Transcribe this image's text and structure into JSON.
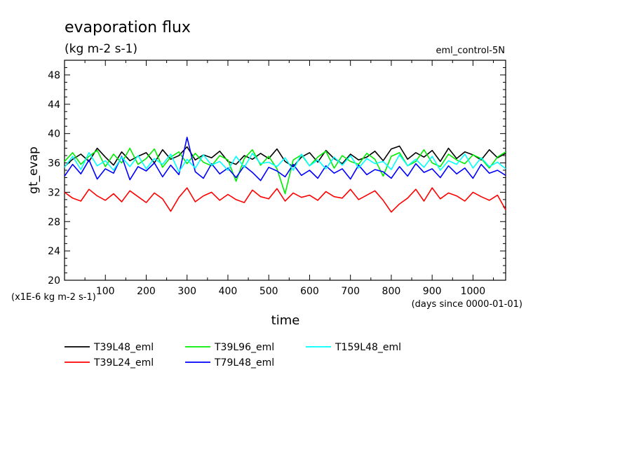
{
  "title": "evaporation flux",
  "units": "(kg m-2 s-1)",
  "experiment": "eml_control-5N",
  "y_multiplier_label": "(x1E-6 kg m-2 s-1)",
  "x_note": "(days since 0000-01-01)",
  "chart_data": {
    "type": "line",
    "xlabel": "time",
    "ylabel": "gt_evap",
    "xlim": [
      0,
      1080
    ],
    "ylim": [
      20,
      50
    ],
    "x_ticks": [
      100,
      200,
      300,
      400,
      500,
      600,
      700,
      800,
      900,
      1000
    ],
    "x_tick_labels": [
      "100",
      "200",
      "300",
      "400",
      "500",
      "600",
      "700",
      "800",
      "900",
      "1000"
    ],
    "y_ticks": [
      20,
      24,
      28,
      32,
      36,
      40,
      44,
      48
    ],
    "y_tick_labels": [
      "20",
      "24",
      "28",
      "32",
      "36",
      "40",
      "44",
      "48"
    ],
    "grid": false,
    "legend_position": "below",
    "series": [
      {
        "name": "T39L48_eml",
        "color": "#000000",
        "x": [
          0,
          20,
          40,
          60,
          80,
          100,
          120,
          140,
          160,
          180,
          200,
          220,
          240,
          260,
          280,
          300,
          320,
          340,
          360,
          380,
          400,
          420,
          440,
          460,
          480,
          500,
          520,
          540,
          560,
          580,
          600,
          620,
          640,
          660,
          680,
          700,
          720,
          740,
          760,
          780,
          800,
          820,
          840,
          860,
          880,
          900,
          920,
          940,
          960,
          980,
          1000,
          1020,
          1040,
          1060,
          1080
        ],
        "values": [
          35.5,
          36.5,
          37.2,
          36.2,
          38.0,
          36.8,
          35.7,
          37.5,
          36.3,
          36.9,
          37.4,
          36.0,
          37.8,
          36.5,
          37.0,
          38.2,
          36.4,
          37.1,
          36.7,
          37.6,
          36.2,
          35.8,
          37.0,
          36.5,
          37.3,
          36.6,
          37.9,
          36.2,
          35.5,
          36.8,
          37.4,
          36.1,
          37.7,
          36.6,
          35.9,
          37.2,
          36.4,
          36.8,
          37.6,
          36.3,
          37.9,
          38.3,
          36.5,
          37.4,
          36.8,
          37.7,
          36.2,
          38.0,
          36.6,
          37.5,
          37.1,
          36.4,
          37.8,
          36.7,
          37.3
        ]
      },
      {
        "name": "T39L24_eml",
        "color": "#ff0000",
        "x": [
          0,
          20,
          40,
          60,
          80,
          100,
          120,
          140,
          160,
          180,
          200,
          220,
          240,
          260,
          280,
          300,
          320,
          340,
          360,
          380,
          400,
          420,
          440,
          460,
          480,
          500,
          520,
          540,
          560,
          580,
          600,
          620,
          640,
          660,
          680,
          700,
          720,
          740,
          760,
          780,
          800,
          820,
          840,
          860,
          880,
          900,
          920,
          940,
          960,
          980,
          1000,
          1020,
          1040,
          1060,
          1080
        ],
        "values": [
          32.0,
          31.2,
          30.8,
          32.4,
          31.5,
          30.9,
          31.8,
          30.7,
          32.2,
          31.4,
          30.6,
          31.9,
          31.1,
          29.4,
          31.3,
          32.6,
          30.7,
          31.5,
          32.0,
          30.9,
          31.7,
          31.0,
          30.6,
          32.3,
          31.4,
          31.1,
          32.5,
          30.8,
          31.9,
          31.3,
          31.6,
          30.9,
          32.1,
          31.4,
          31.2,
          32.4,
          31.0,
          31.6,
          32.2,
          30.9,
          29.3,
          30.4,
          31.2,
          32.4,
          30.8,
          32.6,
          31.1,
          31.9,
          31.5,
          30.8,
          32.0,
          31.4,
          30.9,
          31.6,
          29.6
        ]
      },
      {
        "name": "T39L96_eml",
        "color": "#00ee00",
        "x": [
          0,
          20,
          40,
          60,
          80,
          100,
          120,
          140,
          160,
          180,
          200,
          220,
          240,
          260,
          280,
          300,
          320,
          340,
          360,
          380,
          400,
          420,
          440,
          460,
          480,
          500,
          520,
          540,
          560,
          580,
          600,
          620,
          640,
          660,
          680,
          700,
          720,
          740,
          760,
          780,
          800,
          820,
          840,
          860,
          880,
          900,
          920,
          940,
          960,
          980,
          1000,
          1020,
          1040,
          1060,
          1080
        ],
        "values": [
          36.2,
          37.4,
          35.8,
          36.9,
          37.7,
          35.5,
          37.2,
          36.0,
          38.0,
          35.8,
          36.6,
          37.9,
          35.4,
          36.8,
          37.5,
          35.9,
          37.3,
          36.1,
          35.6,
          37.0,
          36.4,
          33.5,
          36.6,
          37.8,
          35.7,
          36.9,
          35.2,
          31.8,
          36.4,
          37.1,
          35.6,
          36.8,
          37.6,
          35.3,
          37.0,
          36.2,
          35.8,
          37.3,
          36.5,
          34.2,
          36.9,
          37.4,
          35.6,
          36.2,
          37.8,
          36.0,
          35.5,
          37.2,
          36.4,
          35.9,
          37.1,
          36.6,
          35.3,
          36.8,
          37.5
        ]
      },
      {
        "name": "T79L48_eml",
        "color": "#0000ff",
        "x": [
          0,
          20,
          40,
          60,
          80,
          100,
          120,
          140,
          160,
          180,
          200,
          220,
          240,
          260,
          280,
          300,
          320,
          340,
          360,
          380,
          400,
          420,
          440,
          460,
          480,
          500,
          520,
          540,
          560,
          580,
          600,
          620,
          640,
          660,
          680,
          700,
          720,
          740,
          760,
          780,
          800,
          820,
          840,
          860,
          880,
          900,
          920,
          940,
          960,
          980,
          1000,
          1020,
          1040,
          1060,
          1080
        ],
        "values": [
          34.2,
          35.8,
          34.5,
          36.4,
          33.8,
          35.2,
          34.6,
          36.9,
          33.7,
          35.5,
          34.9,
          36.0,
          34.1,
          35.7,
          34.4,
          39.5,
          34.8,
          33.9,
          35.9,
          34.5,
          35.3,
          34.0,
          35.6,
          34.7,
          33.6,
          35.4,
          34.9,
          34.1,
          35.8,
          34.3,
          35.0,
          33.9,
          35.6,
          34.6,
          35.2,
          33.8,
          35.7,
          34.4,
          35.1,
          34.8,
          33.9,
          35.5,
          34.2,
          35.9,
          34.7,
          35.2,
          34.0,
          35.6,
          34.5,
          35.3,
          33.9,
          35.8,
          34.6,
          35.0,
          34.3
        ]
      },
      {
        "name": "T159L48_eml",
        "color": "#00ffff",
        "x": [
          0,
          20,
          40,
          60,
          80,
          100,
          120,
          140,
          160,
          180,
          200,
          220,
          240,
          260,
          280,
          300,
          320,
          340,
          360,
          380,
          400,
          420,
          440,
          460,
          480,
          500,
          520,
          540,
          560,
          580,
          600,
          620,
          640,
          660,
          680,
          700,
          720,
          740,
          760,
          780,
          800,
          820,
          840,
          860,
          880,
          900,
          920,
          940,
          960,
          980,
          1000,
          1020,
          1040,
          1060,
          1080
        ],
        "values": [
          35.4,
          36.9,
          35.1,
          37.4,
          35.6,
          36.3,
          35.0,
          36.8,
          35.5,
          37.0,
          35.2,
          36.6,
          35.8,
          37.2,
          34.8,
          36.5,
          35.3,
          37.1,
          35.7,
          36.2,
          35.0,
          36.9,
          35.4,
          37.3,
          35.9,
          36.1,
          35.5,
          36.7,
          35.0,
          37.2,
          35.6,
          36.4,
          35.2,
          36.8,
          35.7,
          37.0,
          35.3,
          36.6,
          35.9,
          36.2,
          35.1,
          37.1,
          35.6,
          36.5,
          35.4,
          36.9,
          35.0,
          36.3,
          35.8,
          37.2,
          35.3,
          36.7,
          35.5,
          36.1,
          35.2
        ]
      }
    ]
  }
}
